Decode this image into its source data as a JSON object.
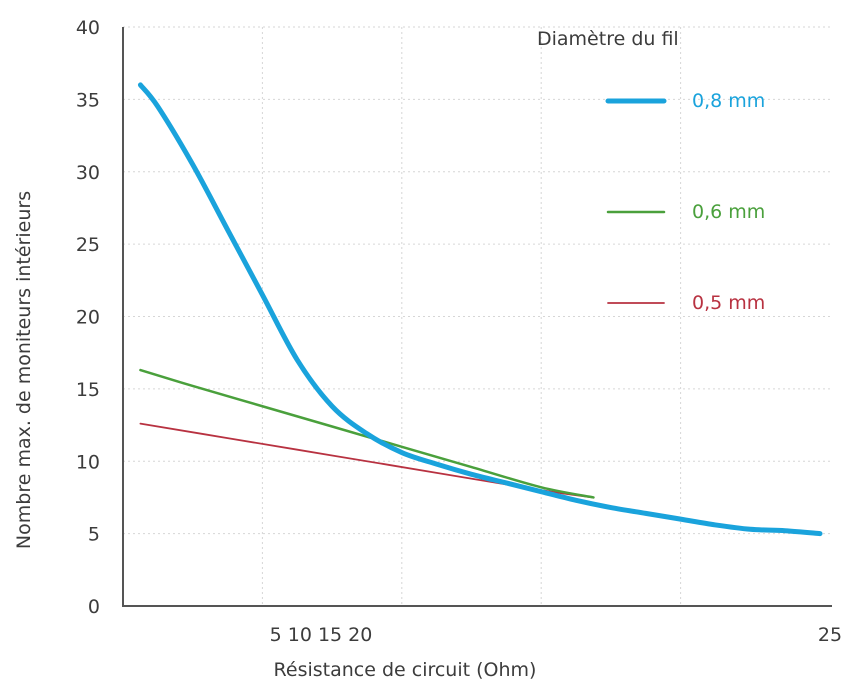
{
  "chart_data": {
    "type": "line",
    "xlabel": "Résistance de circuit (Ohm)",
    "ylabel": "Nombre max. de moniteurs intérieurs",
    "ylim": [
      0,
      40
    ],
    "y_ticks": [
      "0",
      "5",
      "10",
      "15",
      "20",
      "25",
      "30",
      "35",
      "40"
    ],
    "x_tick_labels": [
      "5 10 15 20",
      "25"
    ],
    "grid": true,
    "legend": {
      "title": "Diamètre du fil",
      "placement": "top-right"
    },
    "series": [
      {
        "name": "0,8 mm",
        "color": "#1aa3dc",
        "points": [
          [
            0.5,
            36
          ],
          [
            1,
            34.5
          ],
          [
            2,
            30.5
          ],
          [
            3,
            26
          ],
          [
            4,
            21.5
          ],
          [
            5,
            17
          ],
          [
            6,
            13.8
          ],
          [
            7,
            11.9
          ],
          [
            8,
            10.6
          ],
          [
            9,
            9.8
          ],
          [
            10,
            9.1
          ],
          [
            11,
            8.5
          ],
          [
            12,
            7.9
          ],
          [
            13,
            7.3
          ],
          [
            14,
            6.8
          ],
          [
            15,
            6.4
          ],
          [
            16,
            6.0
          ],
          [
            17,
            5.6
          ],
          [
            18,
            5.3
          ],
          [
            19,
            5.2
          ],
          [
            20,
            5.0
          ]
        ]
      },
      {
        "name": "0,6 mm",
        "color": "#4aa03c",
        "points": [
          [
            0.5,
            16.3
          ],
          [
            2,
            15.2
          ],
          [
            4,
            13.8
          ],
          [
            6,
            12.4
          ],
          [
            8,
            11.0
          ],
          [
            10,
            9.6
          ],
          [
            12,
            8.2
          ],
          [
            13.5,
            7.5
          ]
        ]
      },
      {
        "name": "0,5 mm",
        "color": "#b83241",
        "points": [
          [
            0.5,
            12.6
          ],
          [
            3,
            11.6
          ],
          [
            6,
            10.4
          ],
          [
            9,
            9.2
          ],
          [
            12,
            8.0
          ],
          [
            13.5,
            7.5
          ]
        ]
      }
    ]
  }
}
